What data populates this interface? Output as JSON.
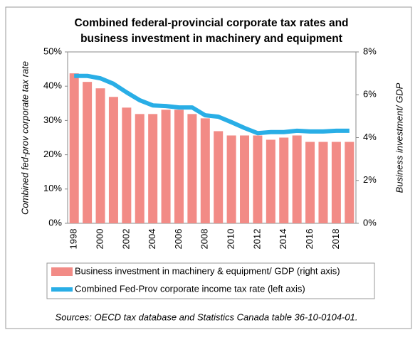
{
  "chart_data": {
    "type": "combo",
    "title": [
      "Combined federal-provincial corporate tax rates and",
      "business investment in machinery and equipment"
    ],
    "y_label": "Combined fed-prov corporate tax rate",
    "y2_label": "Business investment/ GDP",
    "source": "Sources: OECD tax database and Statistics Canada table 36-10-0104-01.",
    "categories": [
      "1998",
      null,
      "2000",
      null,
      "2002",
      null,
      "2004",
      null,
      "2006",
      null,
      "2008",
      null,
      "2010",
      null,
      "2012",
      null,
      "2014",
      null,
      "2016",
      null,
      "2018",
      null
    ],
    "series": [
      {
        "name": "Business investment in machinery & equipment/ GDP (right axis)",
        "type": "bar",
        "axis": "y2",
        "color": "#f28b86",
        "values": [
          7.0,
          6.6,
          6.3,
          5.9,
          5.4,
          5.1,
          5.1,
          5.3,
          5.3,
          5.1,
          4.9,
          4.3,
          4.1,
          4.1,
          4.1,
          3.9,
          4.0,
          4.1,
          3.8,
          3.8,
          3.8,
          3.8
        ]
      },
      {
        "name": "Combined Fed-Prov corporate income tax rate (left axis)",
        "type": "line",
        "axis": "y",
        "color": "#29aee6",
        "values": [
          43.0,
          43.0,
          42.3,
          40.7,
          38.2,
          35.9,
          34.4,
          34.2,
          33.8,
          33.8,
          31.5,
          31.1,
          29.5,
          27.8,
          26.3,
          26.6,
          26.6,
          27.0,
          26.8,
          26.8,
          27.0,
          27.0
        ]
      }
    ],
    "ylim": [
      0,
      50
    ],
    "yticks": [
      {
        "value": 0,
        "label": "0%"
      },
      {
        "value": 10,
        "label": "10%"
      },
      {
        "value": 20,
        "label": "20%"
      },
      {
        "value": 30,
        "label": "30%"
      },
      {
        "value": 40,
        "label": "40%"
      },
      {
        "value": 50,
        "label": "50%"
      }
    ],
    "y2lim": [
      0,
      8
    ],
    "y2ticks": [
      {
        "value": 0,
        "label": "0%"
      },
      {
        "value": 2,
        "label": "2%"
      },
      {
        "value": 4,
        "label": "4%"
      },
      {
        "value": 6,
        "label": "6%"
      },
      {
        "value": 8,
        "label": "8%"
      }
    ]
  }
}
